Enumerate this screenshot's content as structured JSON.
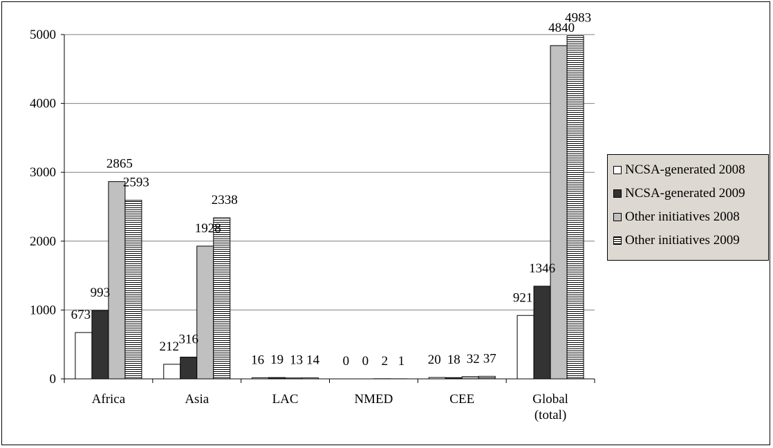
{
  "chart_data": {
    "type": "bar",
    "categories": [
      "Africa",
      "Asia",
      "LAC",
      "NMED",
      "CEE",
      "Global (total)"
    ],
    "series": [
      {
        "name": "NCSA-generated 2008",
        "values": [
          673,
          212,
          16,
          0,
          20,
          921
        ],
        "pattern": "white"
      },
      {
        "name": "NCSA-generated 2009",
        "values": [
          993,
          316,
          19,
          0,
          18,
          1346
        ],
        "pattern": "dark"
      },
      {
        "name": "Other initiatives 2008",
        "values": [
          2865,
          1928,
          13,
          2,
          32,
          4840
        ],
        "pattern": "gray"
      },
      {
        "name": "Other initiatives 2009",
        "values": [
          2593,
          2338,
          14,
          1,
          37,
          4983
        ],
        "pattern": "stripe"
      }
    ],
    "ylim": [
      0,
      5000
    ],
    "yticks": [
      0,
      1000,
      2000,
      3000,
      4000,
      5000
    ],
    "ytick_labels": [
      "0",
      "1000",
      "2000",
      "3000",
      "4000",
      "5000"
    ],
    "grid": true,
    "legend_position": "right",
    "title": "",
    "xlabel": "",
    "ylabel": "",
    "colors": {
      "white": "#ffffff",
      "dark": "#333333",
      "gray": "#c0c0c0",
      "stripe": "#000000",
      "legend_bg": "#ddd8d1"
    }
  }
}
